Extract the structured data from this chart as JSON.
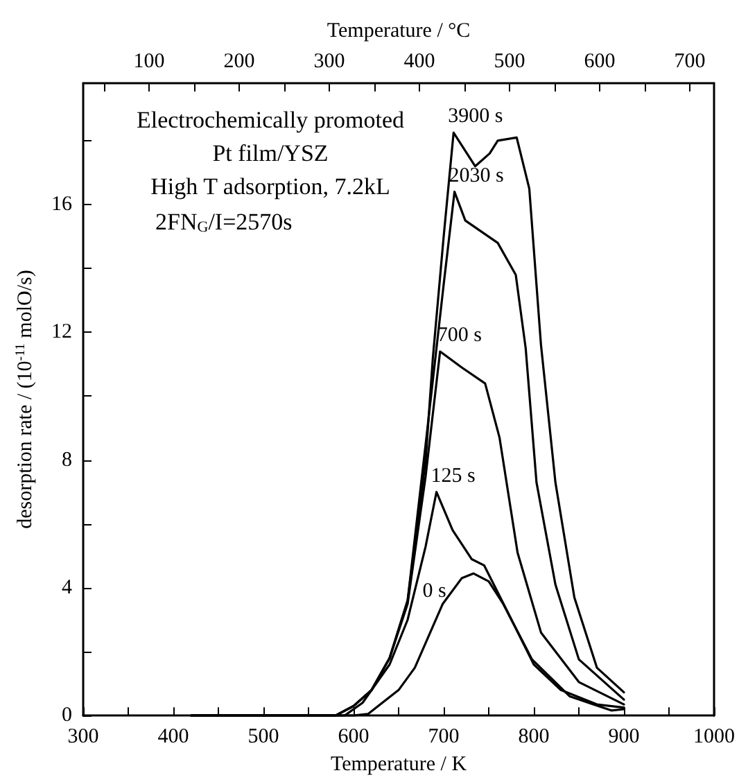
{
  "chart_data": {
    "type": "line",
    "xlabel": "Temperature / K",
    "x2label": "Temperature / °C",
    "ylabel": "desorption rate / (10$^{-11}$ molO/s)",
    "xlim": [
      300,
      1000
    ],
    "xticks": [
      300,
      {
        "value": 350,
        "label": null
      },
      400,
      {
        "value": 450,
        "label": null
      },
      500,
      {
        "value": 550,
        "label": null
      },
      600,
      {
        "value": 650,
        "label": null
      },
      700,
      {
        "value": 750,
        "label": null
      },
      800,
      {
        "value": 850,
        "label": null
      },
      900,
      {
        "value": 950,
        "label": null
      },
      1000
    ],
    "x2lim": [
      26.85,
      726.85
    ],
    "x2ticks": [
      {
        "value": 50,
        "label": null
      },
      100,
      {
        "value": 150,
        "label": null
      },
      200,
      {
        "value": 250,
        "label": null
      },
      300,
      {
        "value": 350,
        "label": null
      },
      400,
      {
        "value": 450,
        "label": null
      },
      500,
      {
        "value": 550,
        "label": null
      },
      600,
      {
        "value": 650,
        "label": null
      },
      700
    ],
    "ylim": [
      0,
      19.8
    ],
    "yticks": [
      0,
      {
        "value": 2,
        "label": null
      },
      4,
      {
        "value": 6,
        "label": null
      },
      8,
      {
        "value": 10,
        "label": null
      },
      12,
      {
        "value": 14,
        "label": null
      },
      16,
      {
        "value": 18,
        "label": null
      }
    ],
    "marker": "none",
    "line_style": "solid",
    "grid": false,
    "series": [
      {
        "color": "#000000",
        "x": [
          420,
          600,
          616,
          650,
          668,
          699,
          720,
          733,
          750,
          766,
          798,
          840,
          886,
          900
        ],
        "values": [
          0,
          0,
          0.05,
          0.8,
          1.5,
          3.5,
          4.3,
          4.45,
          4.2,
          3.5,
          1.76,
          0.6,
          0.16,
          0.2
        ]
      },
      {
        "color": "#000000",
        "x": [
          420,
          590,
          610,
          640,
          660,
          680,
          692,
          710,
          731,
          745,
          770,
          800,
          830,
          870,
          900
        ],
        "values": [
          0,
          0,
          0.4,
          1.6,
          3,
          5.3,
          7.0,
          5.8,
          4.9,
          4.7,
          3.3,
          1.6,
          0.8,
          0.35,
          0.25
        ]
      },
      {
        "color": "#000000",
        "x": [
          420,
          580,
          600,
          620,
          640,
          660,
          680,
          696,
          720,
          746,
          762,
          782,
          808,
          850,
          900
        ],
        "values": [
          0,
          0,
          0.3,
          0.8,
          1.8,
          3.5,
          7.5,
          11.4,
          10.9,
          10.4,
          8.7,
          5.1,
          2.6,
          1.05,
          0.35
        ]
      },
      {
        "color": "#000000",
        "x": [
          420,
          580,
          600,
          620,
          640,
          660,
          680,
          700,
          712,
          724,
          760,
          780,
          791,
          803,
          824,
          850,
          900
        ],
        "values": [
          0,
          0,
          0.3,
          0.8,
          1.8,
          3.6,
          8.5,
          13.5,
          16.4,
          15.5,
          14.8,
          13.8,
          11.5,
          7.3,
          4.1,
          1.76,
          0.5
        ]
      },
      {
        "color": "#000000",
        "x": [
          420,
          580,
          600,
          620,
          640,
          660,
          680,
          688,
          700,
          711,
          735,
          751,
          760,
          781,
          795,
          808,
          824,
          845,
          870,
          900
        ],
        "values": [
          0,
          0,
          0.3,
          0.8,
          1.8,
          3.6,
          8,
          11.2,
          15,
          18.25,
          17.2,
          17.6,
          18.0,
          18.1,
          16.5,
          11.6,
          7.3,
          3.7,
          1.5,
          0.73
        ]
      }
    ],
    "annotations": [
      "Electrochemically promoted",
      "Pt film/YSZ",
      "High T adsorption, 7.2kL",
      "2FN$_{G}$/I=2570s",
      {
        "text": "3900 s",
        "x": 711,
        "y": 18.25
      },
      {
        "text": "2030 s",
        "x": 712,
        "y": 16.4
      },
      {
        "text": "700 s",
        "x": 699,
        "y": 11.4
      },
      {
        "text": "125 s",
        "x": 692,
        "y": 7.0
      },
      {
        "text": "0 s",
        "x": 712,
        "y": 3.9
      }
    ]
  }
}
